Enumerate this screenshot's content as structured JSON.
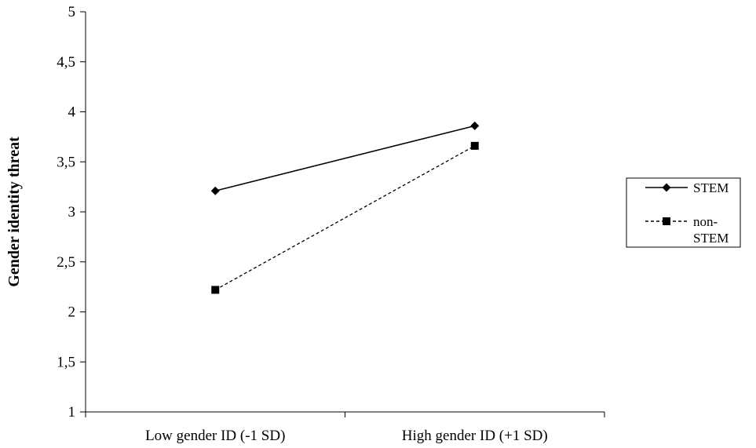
{
  "chart_data": {
    "type": "line",
    "categories": [
      "Low gender ID (-1 SD)",
      "High gender ID (+1 SD)"
    ],
    "series": [
      {
        "name": "STEM",
        "values": [
          3.21,
          3.86
        ],
        "marker": "diamond",
        "line": "solid"
      },
      {
        "name": "non-STEM",
        "legend_lines": [
          "non-",
          "STEM"
        ],
        "values": [
          2.22,
          3.66
        ],
        "marker": "square",
        "line": "dashed"
      }
    ],
    "title": "",
    "xlabel": "",
    "ylabel": "Gender identity threat",
    "ylim": [
      1,
      5
    ],
    "ytick_labels": [
      "1",
      "1,5",
      "2",
      "2,5",
      "3",
      "3,5",
      "4",
      "4,5",
      "5"
    ],
    "grid": false,
    "legend_position": "right"
  }
}
